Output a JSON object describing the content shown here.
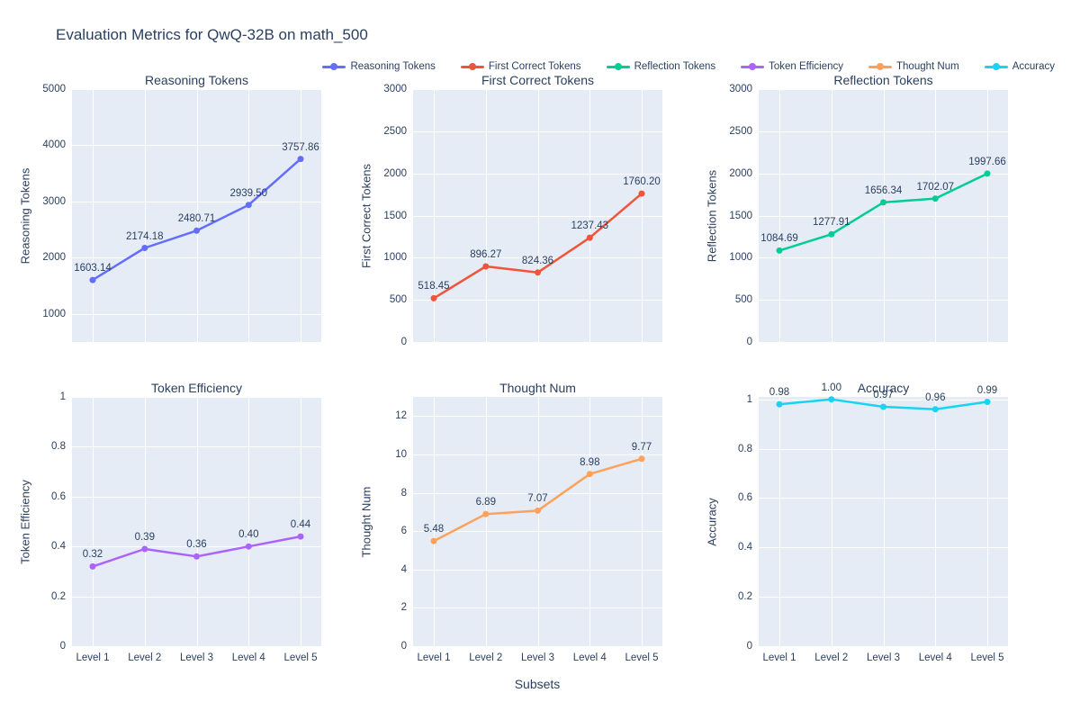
{
  "figure": {
    "title": "Evaluation Metrics for QwQ-32B on math_500",
    "xlabel": "Subsets",
    "background_color": "#ffffff",
    "plot_background_color": "#e5ecf6",
    "grid_color": "#ffffff",
    "text_color": "#2a3f5f"
  },
  "legend": [
    {
      "label": "Reasoning Tokens",
      "color": "#636efa",
      "marker": "line-dot-icon"
    },
    {
      "label": "First Correct Tokens",
      "color": "#ef553b",
      "marker": "line-dot-icon"
    },
    {
      "label": "Reflection Tokens",
      "color": "#00cc96",
      "marker": "line-dot-icon"
    },
    {
      "label": "Token Efficiency",
      "color": "#ab63fa",
      "marker": "line-dot-icon"
    },
    {
      "label": "Thought Num",
      "color": "#ffa15a",
      "marker": "line-dot-icon"
    },
    {
      "label": "Accuracy",
      "color": "#19d3f3",
      "marker": "line-dot-icon"
    }
  ],
  "chart_data": {
    "type": "line",
    "title": "Evaluation Metrics for QwQ-32B on math_500",
    "categories": [
      "Level 1",
      "Level 2",
      "Level 3",
      "Level 4",
      "Level 5"
    ],
    "xlabel": "Subsets",
    "grid": true,
    "legend_position": "top",
    "subplots": [
      {
        "title": "Reasoning Tokens",
        "ylabel": "Reasoning Tokens",
        "color": "#636efa",
        "values": [
          1603.14,
          2174.18,
          2480.71,
          2939.5,
          3757.86
        ],
        "labels": [
          "1603.14",
          "2174.18",
          "2480.71",
          "2939.50",
          "3757.86"
        ],
        "ylim": [
          500,
          5000
        ],
        "yticks": [
          1000,
          2000,
          3000,
          4000,
          5000
        ],
        "ytick_labels": [
          "1000",
          "2000",
          "3000",
          "4000",
          "5000"
        ],
        "show_x_labels": false
      },
      {
        "title": "First Correct Tokens",
        "ylabel": "First Correct Tokens",
        "color": "#ef553b",
        "values": [
          518.45,
          896.27,
          824.36,
          1237.43,
          1760.2
        ],
        "labels": [
          "518.45",
          "896.27",
          "824.36",
          "1237.43",
          "1760.20"
        ],
        "ylim": [
          0,
          3000
        ],
        "yticks": [
          0,
          500,
          1000,
          1500,
          2000,
          2500,
          3000
        ],
        "ytick_labels": [
          "0",
          "500",
          "1000",
          "1500",
          "2000",
          "2500",
          "3000"
        ],
        "show_x_labels": false
      },
      {
        "title": "Reflection Tokens",
        "ylabel": "Reflection Tokens",
        "color": "#00cc96",
        "values": [
          1084.69,
          1277.91,
          1656.34,
          1702.07,
          1997.66
        ],
        "labels": [
          "1084.69",
          "1277.91",
          "1656.34",
          "1702.07",
          "1997.66"
        ],
        "ylim": [
          0,
          3000
        ],
        "yticks": [
          0,
          500,
          1000,
          1500,
          2000,
          2500,
          3000
        ],
        "ytick_labels": [
          "0",
          "500",
          "1000",
          "1500",
          "2000",
          "2500",
          "3000"
        ],
        "show_x_labels": false
      },
      {
        "title": "Token Efficiency",
        "ylabel": "Token Efficiency",
        "color": "#ab63fa",
        "values": [
          0.32,
          0.39,
          0.36,
          0.4,
          0.44
        ],
        "labels": [
          "0.32",
          "0.39",
          "0.36",
          "0.40",
          "0.44"
        ],
        "ylim": [
          0,
          1
        ],
        "yticks": [
          0,
          0.2,
          0.4,
          0.6,
          0.8,
          1
        ],
        "ytick_labels": [
          "0",
          "0.2",
          "0.4",
          "0.6",
          "0.8",
          "1"
        ],
        "show_x_labels": true
      },
      {
        "title": "Thought Num",
        "ylabel": "Thought Num",
        "color": "#ffa15a",
        "values": [
          5.48,
          6.89,
          7.07,
          8.98,
          9.77
        ],
        "labels": [
          "5.48",
          "6.89",
          "7.07",
          "8.98",
          "9.77"
        ],
        "ylim": [
          0,
          13
        ],
        "yticks": [
          0,
          2,
          4,
          6,
          8,
          10,
          12
        ],
        "ytick_labels": [
          "0",
          "2",
          "4",
          "6",
          "8",
          "10",
          "12"
        ],
        "show_x_labels": true
      },
      {
        "title": "Accuracy",
        "ylabel": "Accuracy",
        "color": "#19d3f3",
        "values": [
          0.98,
          1.0,
          0.97,
          0.96,
          0.99
        ],
        "labels": [
          "0.98",
          "1.00",
          "0.97",
          "0.96",
          "0.99"
        ],
        "ylim": [
          0,
          1.01
        ],
        "yticks": [
          0,
          0.2,
          0.4,
          0.6,
          0.8,
          1
        ],
        "ytick_labels": [
          "0",
          "0.2",
          "0.4",
          "0.6",
          "0.8",
          "1"
        ],
        "show_x_labels": true
      }
    ]
  }
}
